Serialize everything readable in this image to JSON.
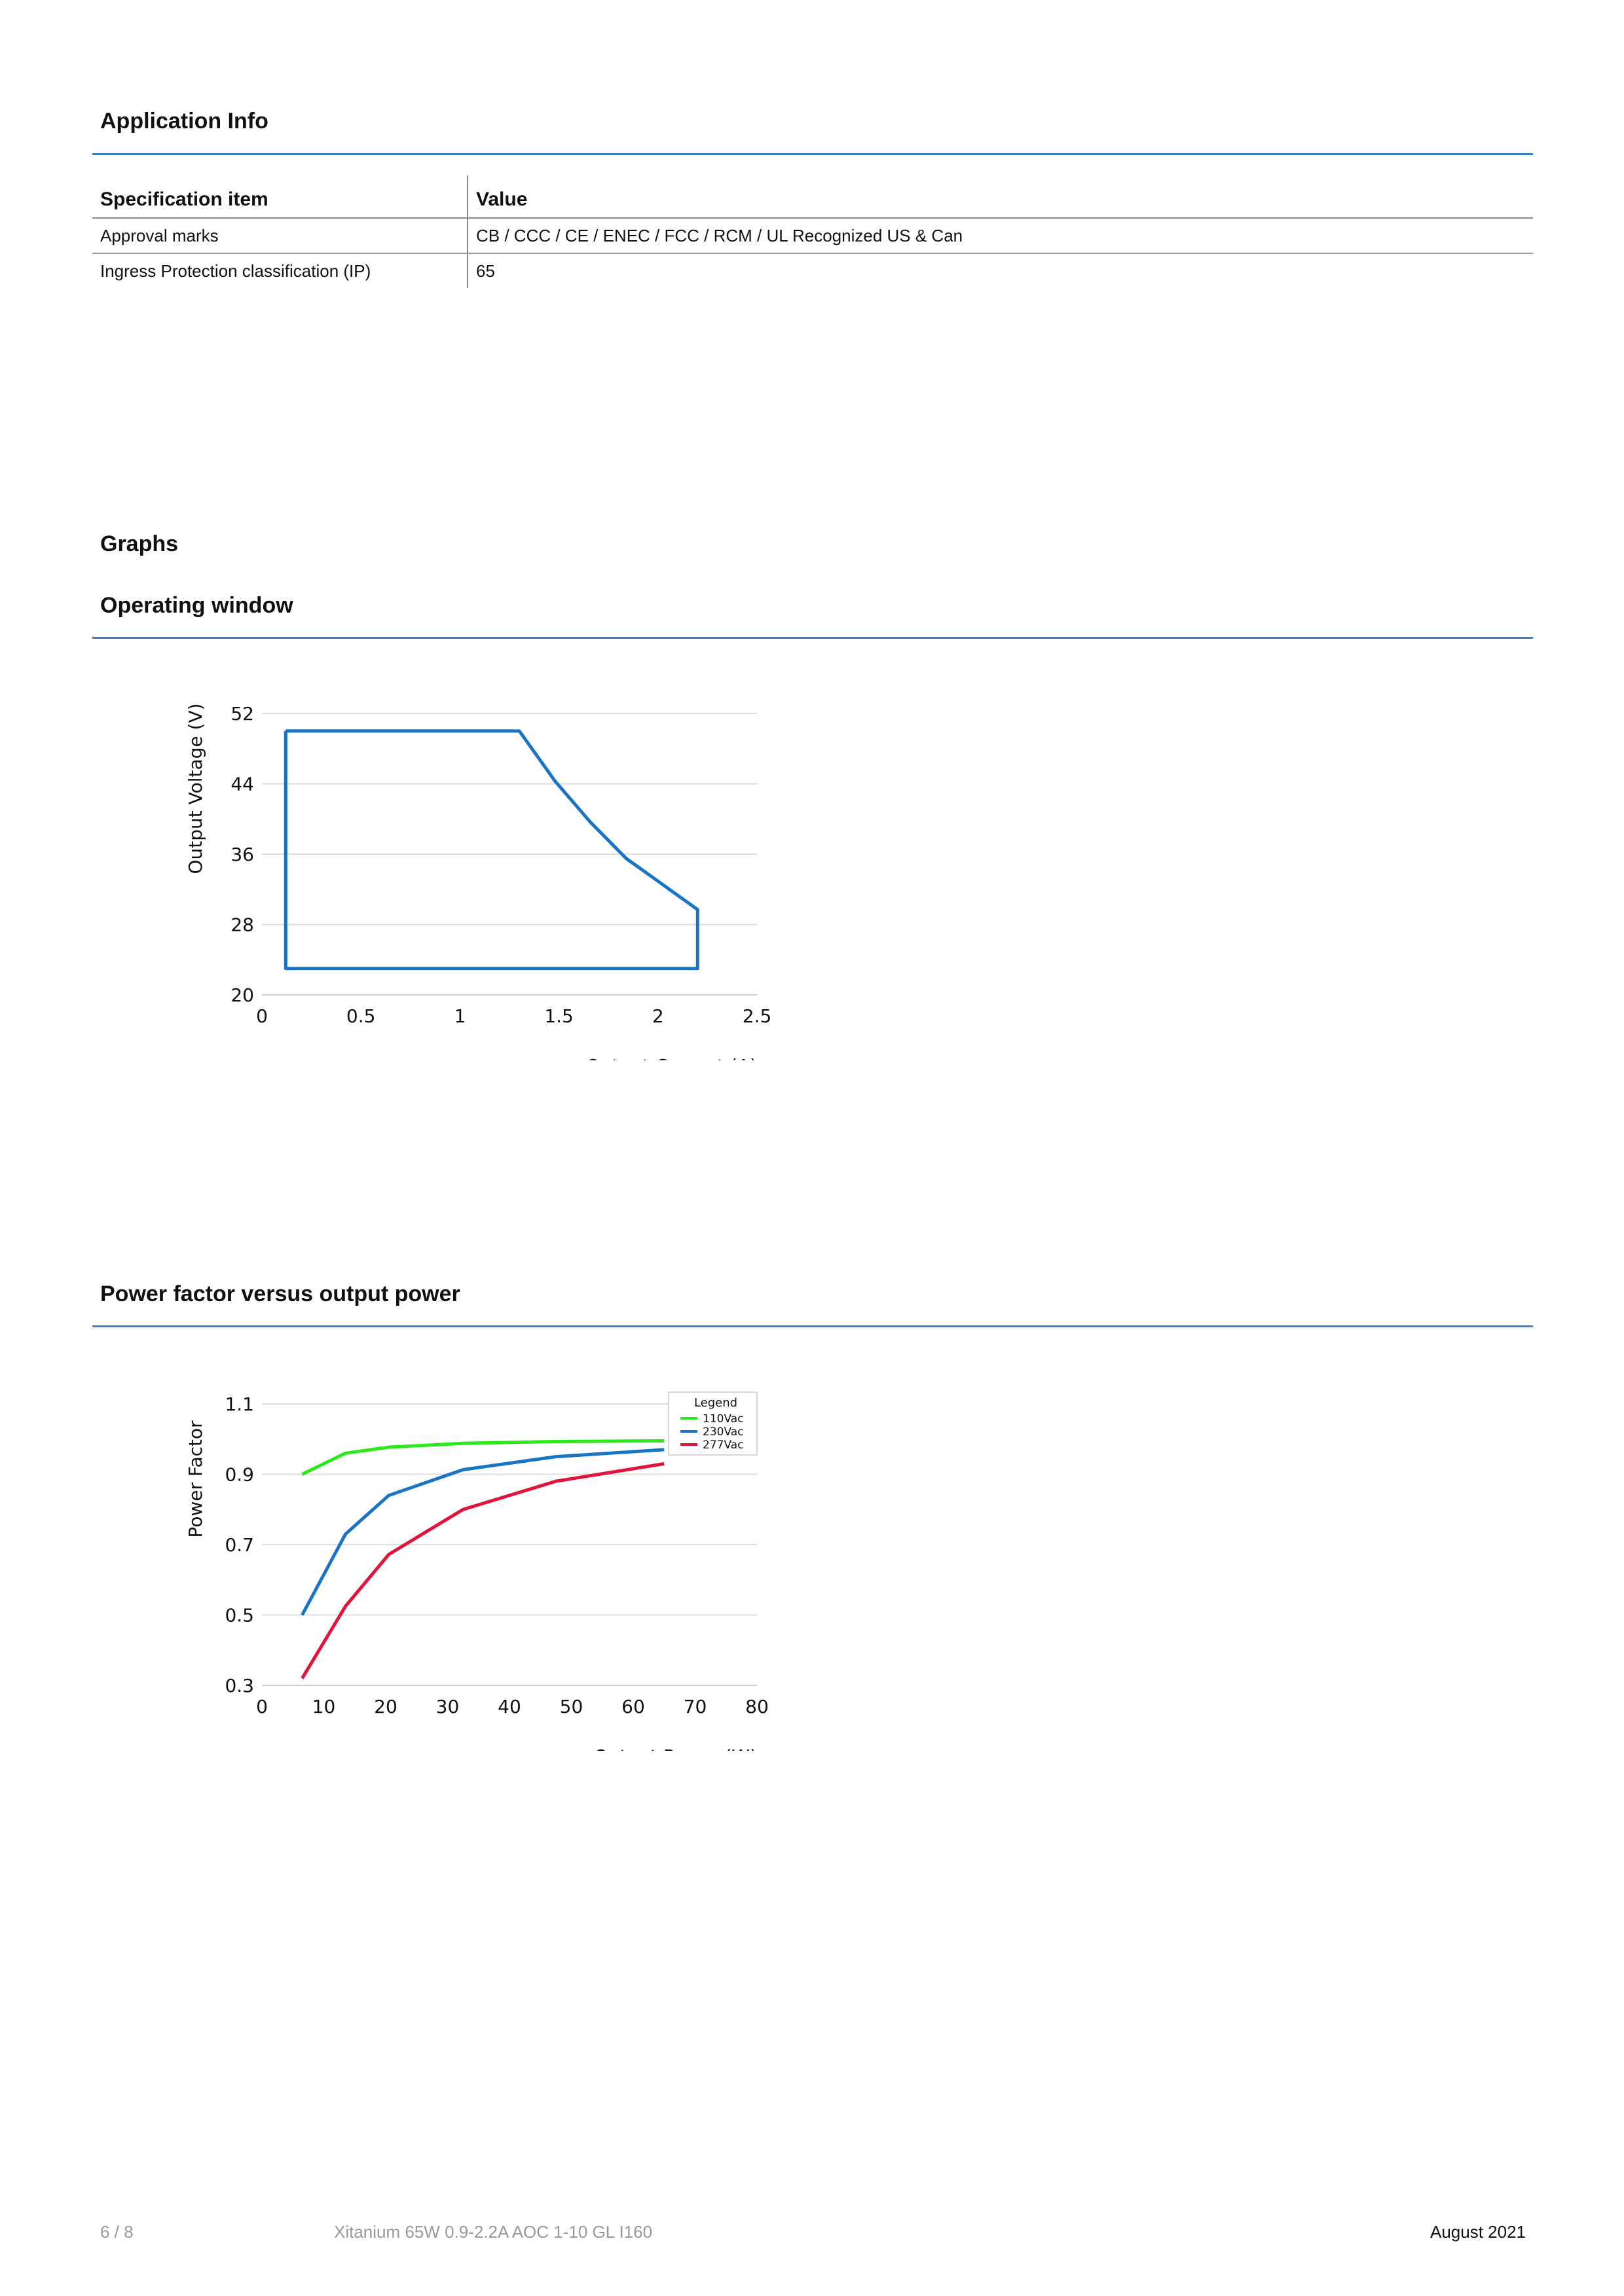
{
  "application_info": {
    "title": "Application Info",
    "table": {
      "headers": [
        "Specification item",
        "Value"
      ],
      "rows": [
        [
          "Approval marks",
          "CB / CCC / CE / ENEC / FCC / RCM / UL Recognized US & Can"
        ],
        [
          "Ingress Protection classification (IP)",
          "65"
        ]
      ]
    }
  },
  "graphs": {
    "title": "Graphs"
  },
  "operating_window": {
    "title": "Operating window"
  },
  "power_factor_section": {
    "title": "Power factor versus output power"
  },
  "chart_data": [
    {
      "type": "line",
      "title": "",
      "xlabel": "Output Current (A)",
      "ylabel": "Output Voltage (V)",
      "xlim": [
        0,
        2.5
      ],
      "ylim": [
        20,
        52
      ],
      "xticks": [
        "0",
        "0.5",
        "1",
        "1.5",
        "2",
        "2.5"
      ],
      "yticks": [
        "20",
        "28",
        "36",
        "44",
        "52"
      ],
      "grid": "horizontal",
      "color": "#1a74c4",
      "series": [
        {
          "x": [
            0.12,
            1.3,
            1.48,
            1.66,
            1.84,
            2.2,
            2.2,
            0.12,
            0.12
          ],
          "y": [
            50,
            50,
            44.3,
            39.6,
            35.5,
            29.7,
            23,
            23,
            50
          ]
        }
      ]
    },
    {
      "type": "line",
      "title": "",
      "xlabel": "Output Power (W)",
      "ylabel": "Power Factor",
      "xlim": [
        0,
        80
      ],
      "ylim": [
        0.3,
        1.1
      ],
      "xticks": [
        "0",
        "10",
        "20",
        "30",
        "40",
        "50",
        "60",
        "70",
        "80"
      ],
      "yticks": [
        "0.3",
        "0.5",
        "0.7",
        "0.9",
        "1.1"
      ],
      "grid": "horizontal",
      "legend_title": "Legend",
      "legend_position": "top-right",
      "series": [
        {
          "name": "110Vac",
          "color": "#2ee81e",
          "x": [
            6.5,
            13.5,
            20.5,
            32.5,
            47.5,
            65
          ],
          "y": [
            0.9,
            0.96,
            0.977,
            0.988,
            0.993,
            0.995
          ]
        },
        {
          "name": "230Vac",
          "color": "#1a74c4",
          "x": [
            6.5,
            13.5,
            20.5,
            32.5,
            47.5,
            65
          ],
          "y": [
            0.5,
            0.73,
            0.84,
            0.913,
            0.95,
            0.97
          ]
        },
        {
          "name": "277Vac",
          "color": "#e0143c",
          "x": [
            6.5,
            13.5,
            20.5,
            32.5,
            47.5,
            65
          ],
          "y": [
            0.32,
            0.525,
            0.672,
            0.8,
            0.88,
            0.93
          ]
        }
      ]
    }
  ],
  "footer": {
    "page": "6 / 8",
    "product": "Xitanium 65W 0.9-2.2A AOC 1-10 GL I160",
    "date": "August 2021"
  }
}
